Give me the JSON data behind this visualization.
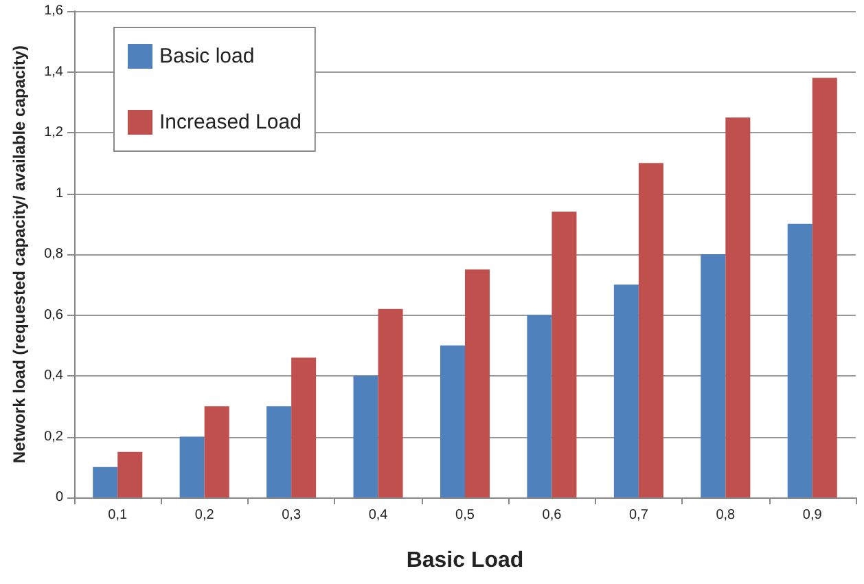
{
  "chart_data": {
    "type": "bar",
    "xlabel": "Basic Load",
    "ylabel": "Network load (requested capacity/ available capacity)",
    "categories": [
      "0,1",
      "0,2",
      "0,3",
      "0,4",
      "0,5",
      "0,6",
      "0,7",
      "0,8",
      "0,9"
    ],
    "series": [
      {
        "name": "Basic load",
        "color": "#4f81bd",
        "values": [
          0.1,
          0.2,
          0.3,
          0.4,
          0.5,
          0.6,
          0.7,
          0.8,
          0.9
        ]
      },
      {
        "name": "Increased Load",
        "color": "#c0504d",
        "values": [
          0.15,
          0.3,
          0.46,
          0.62,
          0.75,
          0.94,
          1.1,
          1.25,
          1.38
        ]
      }
    ],
    "ylim": [
      0,
      1.6
    ],
    "yticks": [
      0,
      {
        "value": 0.2,
        "label": "0,2"
      },
      {
        "value": 0.4,
        "label": "0,4"
      },
      {
        "value": 0.6,
        "label": "0,6"
      },
      {
        "value": 0.8,
        "label": "0,8"
      },
      1,
      {
        "value": 1.2,
        "label": "1,2"
      },
      {
        "value": 1.4,
        "label": "1,4"
      },
      {
        "value": 1.6,
        "label": "1,6"
      }
    ],
    "grid": "y",
    "legend": "top left"
  }
}
